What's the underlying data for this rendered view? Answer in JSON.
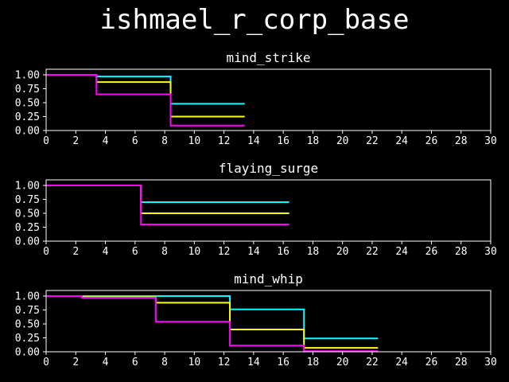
{
  "figure": {
    "title": "ishmael_r_corp_base",
    "background": "#000000",
    "foreground": "#ffffff"
  },
  "chart_data": [
    {
      "type": "line",
      "step": "post",
      "title": "mind_strike",
      "xlabel": "",
      "ylabel": "",
      "xlim": [
        0,
        30
      ],
      "ylim": [
        0,
        1.1
      ],
      "xticks": [
        0,
        2,
        4,
        6,
        8,
        10,
        12,
        14,
        16,
        18,
        20,
        22,
        24,
        26,
        28,
        30
      ],
      "yticks": [
        0,
        0.25,
        0.5,
        0.75,
        1.0
      ],
      "ytick_labels": [
        "0.00",
        "0.25",
        "0.50",
        "0.75",
        "1.00"
      ],
      "series": [
        {
          "color": "#00ffff",
          "x": [
            0,
            3.4,
            8.4,
            13.4
          ],
          "y": [
            1.0,
            0.97,
            0.48,
            0.48
          ]
        },
        {
          "color": "#ffff00",
          "x": [
            0,
            3.4,
            8.4,
            13.4
          ],
          "y": [
            1.0,
            0.87,
            0.25,
            0.25
          ]
        },
        {
          "color": "#ff00ff",
          "x": [
            0,
            3.4,
            8.4,
            13.4
          ],
          "y": [
            1.0,
            0.65,
            0.09,
            0.09
          ]
        }
      ]
    },
    {
      "type": "line",
      "step": "post",
      "title": "flaying_surge",
      "xlabel": "",
      "ylabel": "",
      "xlim": [
        0,
        30
      ],
      "ylim": [
        0,
        1.1
      ],
      "xticks": [
        0,
        2,
        4,
        6,
        8,
        10,
        12,
        14,
        16,
        18,
        20,
        22,
        24,
        26,
        28,
        30
      ],
      "yticks": [
        0,
        0.25,
        0.5,
        0.75,
        1.0
      ],
      "ytick_labels": [
        "0.00",
        "0.25",
        "0.50",
        "0.75",
        "1.00"
      ],
      "series": [
        {
          "color": "#00ffff",
          "x": [
            0,
            6.4,
            16.4
          ],
          "y": [
            1.0,
            0.7,
            0.7
          ]
        },
        {
          "color": "#ffff00",
          "x": [
            0,
            6.4,
            16.4
          ],
          "y": [
            1.0,
            0.5,
            0.5
          ]
        },
        {
          "color": "#ff00ff",
          "x": [
            0,
            6.4,
            16.4
          ],
          "y": [
            1.0,
            0.3,
            0.3
          ]
        }
      ]
    },
    {
      "type": "line",
      "step": "post",
      "title": "mind_whip",
      "xlabel": "",
      "ylabel": "",
      "xlim": [
        0,
        30
      ],
      "ylim": [
        0,
        1.1
      ],
      "xticks": [
        0,
        2,
        4,
        6,
        8,
        10,
        12,
        14,
        16,
        18,
        20,
        22,
        24,
        26,
        28,
        30
      ],
      "yticks": [
        0,
        0.25,
        0.5,
        0.75,
        1.0
      ],
      "ytick_labels": [
        "0.00",
        "0.25",
        "0.50",
        "0.75",
        "1.00"
      ],
      "series": [
        {
          "color": "#00ffff",
          "x": [
            0,
            2.4,
            7.4,
            12.4,
            17.4,
            22.4
          ],
          "y": [
            1.0,
            1.0,
            1.0,
            0.76,
            0.24,
            0.24
          ]
        },
        {
          "color": "#ffff00",
          "x": [
            0,
            2.4,
            7.4,
            12.4,
            17.4,
            22.4
          ],
          "y": [
            1.0,
            0.98,
            0.88,
            0.4,
            0.07,
            0.07
          ]
        },
        {
          "color": "#ff00ff",
          "x": [
            0,
            2.4,
            7.4,
            12.4,
            17.4,
            22.4
          ],
          "y": [
            1.0,
            0.97,
            0.54,
            0.11,
            0.01,
            0.01
          ]
        }
      ]
    }
  ]
}
